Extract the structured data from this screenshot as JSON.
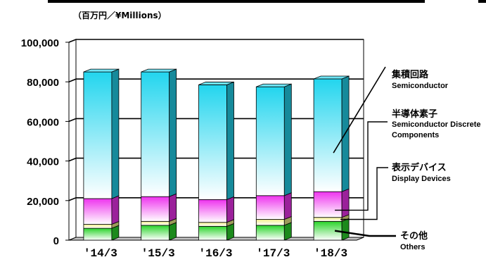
{
  "chart_data": {
    "type": "bar",
    "stacked": true,
    "unit_label": "（百万円／¥Millions）",
    "categories": [
      "'14/3",
      "'15/3",
      "'16/3",
      "'17/3",
      "'18/3"
    ],
    "ylim": [
      0,
      100000
    ],
    "yticks": [
      "0",
      "20,000",
      "40,000",
      "60,000",
      "80,000",
      "100,000"
    ],
    "grid": true,
    "series": [
      {
        "name_ja": "その他",
        "name_en": "Others",
        "color": "#2bd42b",
        "values": [
          6000,
          7500,
          7000,
          7500,
          9500
        ]
      },
      {
        "name_ja": "表示デバイス",
        "name_en": "Display Devices",
        "color": "#f2ef8a",
        "values": [
          2000,
          2000,
          2000,
          3000,
          2000
        ]
      },
      {
        "name_ja": "半導体素子",
        "name_en": "Semiconductor Discrete Components",
        "color": "#ee33ee",
        "values": [
          13000,
          12500,
          11500,
          12000,
          13000
        ]
      },
      {
        "name_ja": "集積回路",
        "name_en": "Semiconductor",
        "color": "#22d5ee",
        "values": [
          64000,
          63000,
          58000,
          55000,
          57000
        ]
      }
    ]
  }
}
